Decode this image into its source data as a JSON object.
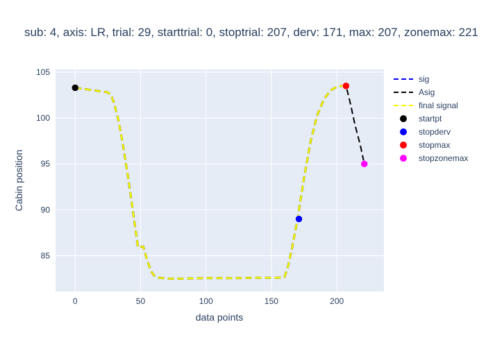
{
  "chart_data": {
    "type": "line",
    "title": "sub: 4, axis: LR, trial: 29, starttrial: 0, stoptrial: 207, derv: 171, max: 207, zonemax: 221",
    "xlabel": "data points",
    "ylabel": "Cabin position",
    "xlim": [
      -15,
      236
    ],
    "ylim": [
      81.1,
      105.3
    ],
    "xticks": [
      0,
      50,
      100,
      150,
      200
    ],
    "yticks": [
      85,
      90,
      95,
      100,
      105
    ],
    "grid": true,
    "legend_position": "right",
    "colors": {
      "plot_bg": "#e5ecf6",
      "grid": "#ffffff",
      "text": "#2a3f5f",
      "sig": "#0000ff",
      "asig": "#000000",
      "final": "#ffff00",
      "startpt": "#000000",
      "stopderv": "#0000ff",
      "stopmax": "#ff0000",
      "stopzonemax": "#ff00ff"
    },
    "series": [
      {
        "name": "sig",
        "style": "dash",
        "color": "#0000ff",
        "x": [
          0,
          5,
          10,
          15,
          20,
          25,
          28,
          30,
          33,
          36,
          40,
          44,
          48,
          52,
          55,
          58,
          61,
          64,
          67,
          70,
          80,
          100,
          120,
          140,
          155,
          160,
          163,
          166,
          170,
          175,
          180,
          185,
          190,
          195,
          200,
          204,
          207
        ],
        "y": [
          103.3,
          103.2,
          103.1,
          103.0,
          102.9,
          102.8,
          102.3,
          101.5,
          99.8,
          97.5,
          94.0,
          90.0,
          85.9,
          86.0,
          84.5,
          83.3,
          82.7,
          82.6,
          82.55,
          82.5,
          82.5,
          82.55,
          82.55,
          82.6,
          82.6,
          82.65,
          84.0,
          86.0,
          89.0,
          93.5,
          97.5,
          100.3,
          102.0,
          103.0,
          103.4,
          103.5,
          103.5
        ]
      },
      {
        "name": "Asig",
        "style": "dash",
        "color": "#000000",
        "x": [
          0,
          5,
          10,
          15,
          20,
          25,
          28,
          30,
          33,
          36,
          40,
          44,
          48,
          52,
          55,
          58,
          61,
          64,
          67,
          70,
          80,
          100,
          120,
          140,
          155,
          160,
          163,
          166,
          170,
          175,
          180,
          185,
          190,
          195,
          200,
          204,
          207,
          210,
          214,
          218,
          221
        ],
        "y": [
          103.3,
          103.2,
          103.1,
          103.0,
          102.9,
          102.8,
          102.3,
          101.5,
          99.8,
          97.5,
          94.0,
          90.0,
          85.9,
          86.0,
          84.5,
          83.3,
          82.7,
          82.6,
          82.55,
          82.5,
          82.5,
          82.55,
          82.55,
          82.6,
          82.6,
          82.65,
          84.0,
          86.0,
          89.0,
          93.5,
          97.5,
          100.3,
          102.0,
          103.0,
          103.4,
          103.5,
          103.5,
          101.8,
          99.2,
          97.0,
          95.0
        ]
      },
      {
        "name": "final signal",
        "style": "dash",
        "color": "#ffff00",
        "x": [
          0,
          5,
          10,
          15,
          20,
          25,
          28,
          30,
          33,
          36,
          40,
          44,
          48,
          52,
          55,
          58,
          61,
          64,
          67,
          70,
          80,
          100,
          120,
          140,
          155,
          160,
          163,
          166,
          170,
          175,
          180,
          185,
          190,
          195,
          200,
          204,
          207
        ],
        "y": [
          103.3,
          103.2,
          103.1,
          103.0,
          102.9,
          102.8,
          102.3,
          101.5,
          99.8,
          97.5,
          94.0,
          90.0,
          85.9,
          86.0,
          84.5,
          83.3,
          82.7,
          82.6,
          82.55,
          82.5,
          82.5,
          82.55,
          82.55,
          82.6,
          82.6,
          82.65,
          84.0,
          86.0,
          89.0,
          93.5,
          97.5,
          100.3,
          102.0,
          103.0,
          103.4,
          103.5,
          103.5
        ]
      }
    ],
    "markers": [
      {
        "name": "startpt",
        "x": 0,
        "y": 103.3,
        "color": "#000000"
      },
      {
        "name": "stopderv",
        "x": 171,
        "y": 89.0,
        "color": "#0000ff"
      },
      {
        "name": "stopmax",
        "x": 207,
        "y": 103.5,
        "color": "#ff0000"
      },
      {
        "name": "stopzonemax",
        "x": 221,
        "y": 95.0,
        "color": "#ff00ff"
      }
    ]
  }
}
